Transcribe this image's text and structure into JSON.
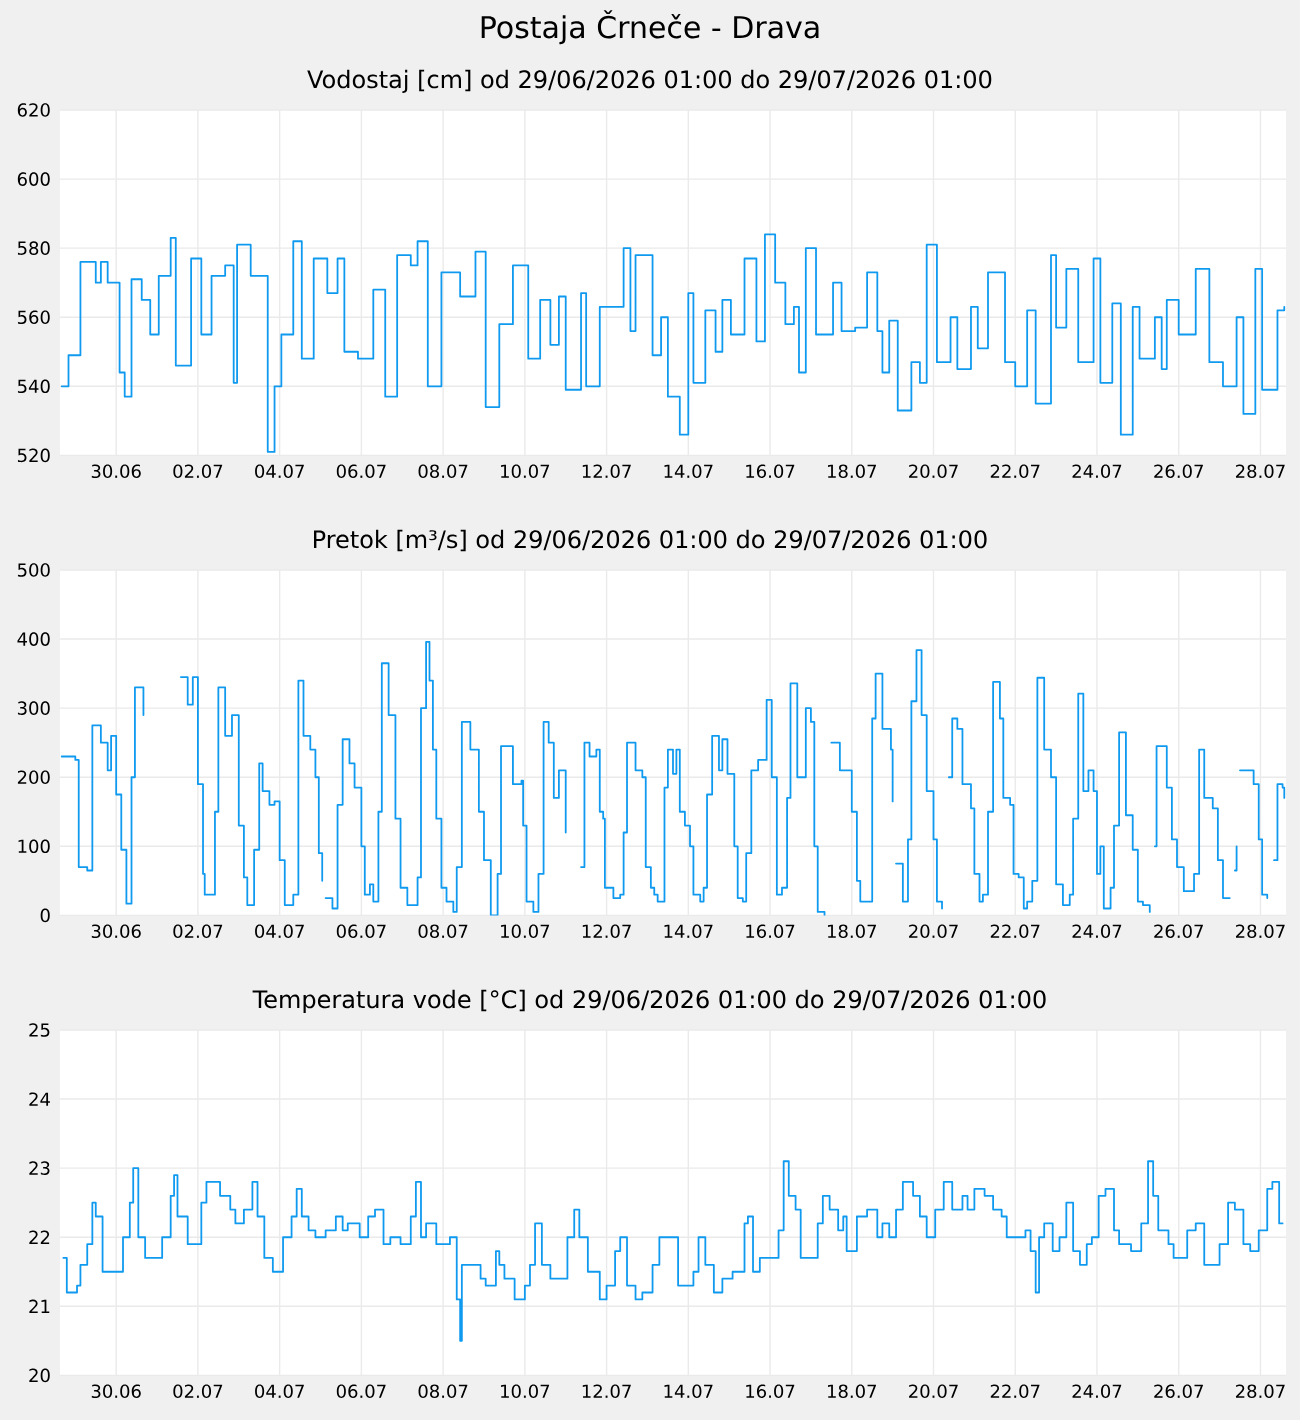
{
  "chart_data": [
    {
      "type": "step",
      "title": "Postaja Črneče - Drava",
      "subtitle": "Vodostaj [cm] od 29/06/2026 01:00 do 29/07/2026 01:00",
      "color": "#0f9af0",
      "grid": true,
      "xlim": [
        "2026-06-28T15:00",
        "2026-07-28T15:00"
      ],
      "ylim": [
        520,
        620
      ],
      "yticks": [
        520,
        540,
        560,
        580,
        600,
        620
      ],
      "xticks": [
        {
          "value": "2026-06-30",
          "label": "30.06"
        },
        {
          "value": "2026-07-02",
          "label": "02.07"
        },
        {
          "value": "2026-07-04",
          "label": "04.07"
        },
        {
          "value": "2026-07-06",
          "label": "06.07"
        },
        {
          "value": "2026-07-08",
          "label": "08.07"
        },
        {
          "value": "2026-07-10",
          "label": "10.07"
        },
        {
          "value": "2026-07-12",
          "label": "12.07"
        },
        {
          "value": "2026-07-14",
          "label": "14.07"
        },
        {
          "value": "2026-07-16",
          "label": "16.07"
        },
        {
          "value": "2026-07-18",
          "label": "18.07"
        },
        {
          "value": "2026-07-20",
          "label": "20.07"
        },
        {
          "value": "2026-07-22",
          "label": "22.07"
        },
        {
          "value": "2026-07-24",
          "label": "24.07"
        },
        {
          "value": "2026-07-26",
          "label": "26.07"
        },
        {
          "value": "2026-07-28",
          "label": "28.07"
        }
      ],
      "x": [
        "2026-06-28T16:00",
        "2026-06-28T20:00",
        "2026-06-29T03:00",
        "2026-06-29T12:00",
        "2026-06-29T15:00",
        "2026-06-29T19:00",
        "2026-06-30T02:00",
        "2026-06-30T05:00",
        "2026-06-30T09:00",
        "2026-06-30T15:00",
        "2026-06-30T20:00",
        "2026-07-01T01:00",
        "2026-07-01T08:00",
        "2026-07-01T11:00",
        "2026-07-01T20:00",
        "2026-07-02T02:00",
        "2026-07-02T08:00",
        "2026-07-02T16:00",
        "2026-07-02T21:00",
        "2026-07-02T23:00",
        "2026-07-03T07:00",
        "2026-07-03T17:00",
        "2026-07-03T21:00",
        "2026-07-04T01:00",
        "2026-07-04T08:00",
        "2026-07-04T13:00",
        "2026-07-04T20:00",
        "2026-07-05T04:00",
        "2026-07-05T10:00",
        "2026-07-05T14:00",
        "2026-07-05T22:00",
        "2026-07-06T07:00",
        "2026-07-06T14:00",
        "2026-07-06T21:00",
        "2026-07-07T05:00",
        "2026-07-07T09:00",
        "2026-07-07T15:00",
        "2026-07-07T23:00",
        "2026-07-08T10:00",
        "2026-07-08T19:00",
        "2026-07-09T01:00",
        "2026-07-09T09:00",
        "2026-07-09T17:00",
        "2026-07-10T02:00",
        "2026-07-10T09:00",
        "2026-07-10T15:00",
        "2026-07-10T20:00",
        "2026-07-11T00:00",
        "2026-07-11T09:00",
        "2026-07-11T12:00",
        "2026-07-11T20:00",
        "2026-07-12T10:00",
        "2026-07-12T14:00",
        "2026-07-12T17:00",
        "2026-07-13T03:00",
        "2026-07-13T08:00",
        "2026-07-13T12:00",
        "2026-07-13T19:00",
        "2026-07-14T00:00",
        "2026-07-14T03:00",
        "2026-07-14T10:00",
        "2026-07-14T16:00",
        "2026-07-14T20:00",
        "2026-07-15T01:00",
        "2026-07-15T09:00",
        "2026-07-15T16:00",
        "2026-07-15T21:00",
        "2026-07-16T03:00",
        "2026-07-16T09:00",
        "2026-07-16T14:00",
        "2026-07-16T17:00",
        "2026-07-16T21:00",
        "2026-07-17T03:00",
        "2026-07-17T13:00",
        "2026-07-17T18:00",
        "2026-07-18T02:00",
        "2026-07-18T09:00",
        "2026-07-18T15:00",
        "2026-07-18T18:00",
        "2026-07-18T22:00",
        "2026-07-19T03:00",
        "2026-07-19T11:00",
        "2026-07-19T16:00",
        "2026-07-19T20:00",
        "2026-07-20T02:00",
        "2026-07-20T10:00",
        "2026-07-20T14:00",
        "2026-07-20T22:00",
        "2026-07-21T02:00",
        "2026-07-21T08:00",
        "2026-07-21T18:00",
        "2026-07-22T00:00",
        "2026-07-22T07:00",
        "2026-07-22T12:00",
        "2026-07-22T21:00",
        "2026-07-23T00:00",
        "2026-07-23T06:00",
        "2026-07-23T13:00",
        "2026-07-23T22:00",
        "2026-07-24T02:00",
        "2026-07-24T09:00",
        "2026-07-24T14:00",
        "2026-07-24T21:00",
        "2026-07-25T01:00",
        "2026-07-25T10:00",
        "2026-07-25T14:00",
        "2026-07-25T17:00",
        "2026-07-26T00:00",
        "2026-07-26T10:00",
        "2026-07-26T18:00",
        "2026-07-27T02:00",
        "2026-07-27T10:00",
        "2026-07-27T14:00",
        "2026-07-27T21:00",
        "2026-07-28T01:00",
        "2026-07-28T10:00",
        "2026-07-28T14:00"
      ],
      "values": [
        540,
        549,
        576,
        570,
        576,
        570,
        544,
        537,
        571,
        565,
        555,
        572,
        583,
        546,
        577,
        555,
        572,
        575,
        541,
        581,
        572,
        521,
        540,
        555,
        582,
        548,
        577,
        567,
        577,
        550,
        548,
        568,
        537,
        578,
        575,
        582,
        540,
        573,
        566,
        579,
        534,
        558,
        575,
        548,
        565,
        552,
        566,
        539,
        567,
        540,
        563,
        580,
        556,
        578,
        549,
        560,
        537,
        526,
        567,
        541,
        562,
        550,
        565,
        555,
        577,
        553,
        584,
        570,
        558,
        563,
        544,
        580,
        555,
        570,
        556,
        557,
        573,
        556,
        544,
        559,
        533,
        547,
        541,
        581,
        547,
        560,
        545,
        563,
        551,
        573,
        547,
        540,
        562,
        535,
        578,
        557,
        574,
        547,
        577,
        541,
        564,
        526,
        563,
        548,
        560,
        545,
        565,
        555,
        574,
        547,
        540,
        560,
        532,
        574,
        539,
        562,
        563
      ]
    },
    {
      "type": "step",
      "title": "Pretok [m³/s] od 29/06/2026 01:00 do 29/07/2026 01:00",
      "color": "#0f9af0",
      "grid": true,
      "xlim": [
        "2026-06-28T15:00",
        "2026-07-28T15:00"
      ],
      "ylim": [
        0,
        500
      ],
      "yticks": [
        0,
        100,
        200,
        300,
        400,
        500
      ],
      "xticks": [
        {
          "value": "2026-06-30",
          "label": "30.06"
        },
        {
          "value": "2026-07-02",
          "label": "02.07"
        },
        {
          "value": "2026-07-04",
          "label": "04.07"
        },
        {
          "value": "2026-07-06",
          "label": "06.07"
        },
        {
          "value": "2026-07-08",
          "label": "08.07"
        },
        {
          "value": "2026-07-10",
          "label": "10.07"
        },
        {
          "value": "2026-07-12",
          "label": "12.07"
        },
        {
          "value": "2026-07-14",
          "label": "14.07"
        },
        {
          "value": "2026-07-16",
          "label": "16.07"
        },
        {
          "value": "2026-07-18",
          "label": "18.07"
        },
        {
          "value": "2026-07-20",
          "label": "20.07"
        },
        {
          "value": "2026-07-22",
          "label": "22.07"
        },
        {
          "value": "2026-07-24",
          "label": "24.07"
        },
        {
          "value": "2026-07-26",
          "label": "26.07"
        },
        {
          "value": "2026-07-28",
          "label": "28.07"
        }
      ],
      "x": [
        "2026-06-28T16:00",
        "2026-06-29T00:00",
        "2026-06-29T02:00",
        "2026-06-29T07:00",
        "2026-06-29T10:00",
        "2026-06-29T15:00",
        "2026-06-29T19:00",
        "2026-06-29T21:00",
        "2026-06-30T00:00",
        "2026-06-30T03:00",
        "2026-06-30T06:00",
        "2026-06-30T09:00",
        "2026-06-30T11:00",
        "2026-06-30T16:00",
        "2026-06-30T20:00",
        "2026-07-01T14:00",
        "2026-07-01T18:00",
        "2026-07-01T21:00",
        "2026-07-02T00:00",
        "2026-07-02T03:00",
        "2026-07-02T04:00",
        "2026-07-02T10:00",
        "2026-07-02T12:00",
        "2026-07-02T16:00",
        "2026-07-02T20:00",
        "2026-07-03T00:00",
        "2026-07-03T03:00",
        "2026-07-03T05:00",
        "2026-07-03T09:00",
        "2026-07-03T12:00",
        "2026-07-03T14:00",
        "2026-07-03T18:00",
        "2026-07-03T21:00",
        "2026-07-04T00:00",
        "2026-07-04T03:00",
        "2026-07-04T08:00",
        "2026-07-04T11:00",
        "2026-07-04T14:00",
        "2026-07-04T18:00",
        "2026-07-04T21:00",
        "2026-07-04T23:00",
        "2026-07-05T01:00",
        "2026-07-05T02:00",
        "2026-07-05T03:00",
        "2026-07-05T07:00",
        "2026-07-05T10:00",
        "2026-07-05T13:00",
        "2026-07-05T17:00",
        "2026-07-05T20:00",
        "2026-07-06T00:00",
        "2026-07-06T02:00",
        "2026-07-06T05:00",
        "2026-07-06T07:00",
        "2026-07-06T10:00",
        "2026-07-06T12:00",
        "2026-07-06T16:00",
        "2026-07-06T20:00",
        "2026-07-06T23:00",
        "2026-07-07T03:00",
        "2026-07-07T09:00",
        "2026-07-07T11:00",
        "2026-07-07T14:00",
        "2026-07-07T16:00",
        "2026-07-07T18:00",
        "2026-07-07T20:00",
        "2026-07-07T23:00",
        "2026-07-08T02:00",
        "2026-07-08T06:00",
        "2026-07-08T08:00",
        "2026-07-08T11:00",
        "2026-07-08T16:00",
        "2026-07-08T21:00",
        "2026-07-09T00:00",
        "2026-07-09T04:00",
        "2026-07-09T08:00",
        "2026-07-09T10:00",
        "2026-07-09T15:00",
        "2026-07-09T17:00",
        "2026-07-09T22:00",
        "2026-07-09T23:00",
        "2026-07-10T01:00",
        "2026-07-10T05:00",
        "2026-07-10T08:00",
        "2026-07-10T11:00",
        "2026-07-10T14:00",
        "2026-07-10T17:00",
        "2026-07-10T20:00",
        "2026-07-11T00:00",
        "2026-07-11T01:00",
        "2026-07-11T09:00",
        "2026-07-11T11:00",
        "2026-07-11T14:00",
        "2026-07-11T18:00",
        "2026-07-11T20:00",
        "2026-07-11T22:00",
        "2026-07-11T23:00",
        "2026-07-12T04:00",
        "2026-07-12T08:00",
        "2026-07-12T10:00",
        "2026-07-12T12:00",
        "2026-07-12T17:00",
        "2026-07-12T21:00",
        "2026-07-12T23:00",
        "2026-07-13T02:00",
        "2026-07-13T04:00",
        "2026-07-13T06:00",
        "2026-07-13T10:00",
        "2026-07-13T12:00",
        "2026-07-13T15:00",
        "2026-07-13T17:00",
        "2026-07-13T19:00",
        "2026-07-13T22:00",
        "2026-07-14T01:00",
        "2026-07-14T03:00",
        "2026-07-14T07:00",
        "2026-07-14T09:00",
        "2026-07-14T11:00",
        "2026-07-14T14:00",
        "2026-07-14T18:00",
        "2026-07-14T20:00",
        "2026-07-14T23:00",
        "2026-07-15T03:00",
        "2026-07-15T05:00",
        "2026-07-15T08:00",
        "2026-07-15T10:00",
        "2026-07-15T13:00",
        "2026-07-15T17:00",
        "2026-07-15T22:00",
        "2026-07-16T01:00",
        "2026-07-16T04:00",
        "2026-07-16T07:00",
        "2026-07-16T10:00",
        "2026-07-16T12:00",
        "2026-07-16T16:00",
        "2026-07-16T21:00",
        "2026-07-17T00:00",
        "2026-07-17T02:00",
        "2026-07-17T04:00",
        "2026-07-17T08:00",
        "2026-07-17T10:00",
        "2026-07-17T12:00",
        "2026-07-17T17:00",
        "2026-07-17T22:00",
        "2026-07-18T00:00",
        "2026-07-18T03:00",
        "2026-07-18T05:00",
        "2026-07-18T08:00",
        "2026-07-18T12:00",
        "2026-07-18T14:00",
        "2026-07-18T18:00",
        "2026-07-18T23:00",
        "2026-07-19T00:00",
        "2026-07-19T01:00",
        "2026-07-19T02:00",
        "2026-07-19T06:00",
        "2026-07-19T09:00",
        "2026-07-19T11:00",
        "2026-07-19T14:00",
        "2026-07-19T17:00",
        "2026-07-19T20:00",
        "2026-07-20T00:00",
        "2026-07-20T02:00",
        "2026-07-20T05:00",
        "2026-07-20T07:00",
        "2026-07-20T09:00",
        "2026-07-20T11:00",
        "2026-07-20T14:00",
        "2026-07-20T17:00",
        "2026-07-20T22:00",
        "2026-07-21T00:00",
        "2026-07-21T03:00",
        "2026-07-21T05:00",
        "2026-07-21T08:00",
        "2026-07-21T11:00",
        "2026-07-21T15:00",
        "2026-07-21T17:00",
        "2026-07-21T21:00",
        "2026-07-21T23:00",
        "2026-07-22T02:00",
        "2026-07-22T05:00",
        "2026-07-22T07:00",
        "2026-07-22T10:00",
        "2026-07-22T13:00",
        "2026-07-22T17:00",
        "2026-07-22T21:00",
        "2026-07-23T00:00",
        "2026-07-23T04:00",
        "2026-07-23T08:00",
        "2026-07-23T10:00",
        "2026-07-23T13:00",
        "2026-07-23T16:00",
        "2026-07-23T19:00",
        "2026-07-23T22:00",
        "2026-07-24T00:00",
        "2026-07-24T02:00",
        "2026-07-24T04:00",
        "2026-07-24T08:00",
        "2026-07-24T10:00",
        "2026-07-24T13:00",
        "2026-07-24T17:00",
        "2026-07-24T21:00",
        "2026-07-25T00:00",
        "2026-07-25T03:00",
        "2026-07-25T07:00",
        "2026-07-25T08:00",
        "2026-07-25T10:00",
        "2026-07-25T11:00",
        "2026-07-25T17:00",
        "2026-07-25T20:00",
        "2026-07-25T23:00",
        "2026-07-26T03:00",
        "2026-07-26T06:00",
        "2026-07-26T09:00",
        "2026-07-26T12:00",
        "2026-07-26T15:00",
        "2026-07-26T20:00",
        "2026-07-26T23:00",
        "2026-07-27T02:00",
        "2026-07-27T06:00",
        "2026-07-27T07:00",
        "2026-07-27T09:00",
        "2026-07-27T10:00",
        "2026-07-27T11:00",
        "2026-07-27T12:00",
        "2026-07-27T16:00",
        "2026-07-27T20:00",
        "2026-07-27T23:00",
        "2026-07-28T01:00",
        "2026-07-28T04:00",
        "2026-07-28T05:00",
        "2026-07-28T08:00",
        "2026-07-28T10:00",
        "2026-07-28T13:00",
        "2026-07-28T14:00"
      ],
      "values": [
        230,
        225,
        70,
        65,
        275,
        250,
        210,
        260,
        175,
        95,
        17,
        200,
        330,
        290,
        null,
        345,
        305,
        345,
        190,
        60,
        30,
        150,
        330,
        260,
        290,
        130,
        55,
        15,
        95,
        220,
        180,
        160,
        165,
        80,
        15,
        30,
        340,
        260,
        240,
        200,
        90,
        50,
        null,
        25,
        10,
        160,
        255,
        220,
        185,
        100,
        30,
        45,
        20,
        150,
        365,
        290,
        140,
        40,
        15,
        55,
        300,
        396,
        340,
        240,
        140,
        40,
        20,
        5,
        70,
        280,
        240,
        150,
        80,
        0,
        60,
        245,
        245,
        190,
        195,
        130,
        20,
        5,
        60,
        280,
        250,
        170,
        210,
        120,
        null,
        70,
        250,
        230,
        240,
        150,
        140,
        40,
        25,
        30,
        120,
        250,
        210,
        200,
        70,
        40,
        30,
        20,
        185,
        240,
        205,
        240,
        150,
        130,
        100,
        30,
        20,
        40,
        175,
        260,
        210,
        255,
        205,
        100,
        25,
        20,
        90,
        210,
        225,
        312,
        200,
        30,
        40,
        170,
        336,
        200,
        300,
        280,
        100,
        5,
        0,
        null,
        250,
        210,
        210,
        150,
        50,
        20,
        20,
        285,
        350,
        270,
        240,
        165,
        null,
        75,
        20,
        110,
        310,
        384,
        290,
        180,
        110,
        20,
        10,
        null,
        200,
        285,
        270,
        190,
        155,
        60,
        20,
        30,
        150,
        338,
        285,
        170,
        160,
        60,
        55,
        10,
        20,
        50,
        344,
        240,
        200,
        45,
        15,
        30,
        140,
        321,
        180,
        210,
        180,
        60,
        100,
        10,
        40,
        130,
        265,
        145,
        95,
        20,
        15,
        5,
        null,
        100,
        245,
        185,
        110,
        70,
        35,
        35,
        60,
        240,
        170,
        155,
        80,
        25,
        25,
        null,
        65,
        100,
        null,
        210,
        210,
        190,
        110,
        30,
        25,
        null,
        80,
        190,
        185,
        170
      ]
    },
    {
      "type": "step",
      "title": "Temperatura vode [°C] od 29/06/2026 01:00 do 29/07/2026 01:00",
      "color": "#0f9af0",
      "grid": true,
      "xlim": [
        "2026-06-28T15:00",
        "2026-07-28T15:00"
      ],
      "ylim": [
        20,
        25
      ],
      "yticks": [
        20,
        21,
        22,
        23,
        24,
        25
      ],
      "xticks": [
        {
          "value": "2026-06-30",
          "label": "30.06"
        },
        {
          "value": "2026-07-02",
          "label": "02.07"
        },
        {
          "value": "2026-07-04",
          "label": "04.07"
        },
        {
          "value": "2026-07-06",
          "label": "06.07"
        },
        {
          "value": "2026-07-08",
          "label": "08.07"
        },
        {
          "value": "2026-07-10",
          "label": "10.07"
        },
        {
          "value": "2026-07-12",
          "label": "12.07"
        },
        {
          "value": "2026-07-14",
          "label": "14.07"
        },
        {
          "value": "2026-07-16",
          "label": "16.07"
        },
        {
          "value": "2026-07-18",
          "label": "18.07"
        },
        {
          "value": "2026-07-20",
          "label": "20.07"
        },
        {
          "value": "2026-07-22",
          "label": "22.07"
        },
        {
          "value": "2026-07-24",
          "label": "24.07"
        },
        {
          "value": "2026-07-26",
          "label": "26.07"
        },
        {
          "value": "2026-07-28",
          "label": "28.07"
        }
      ],
      "x": [
        "2026-06-28T17:00",
        "2026-06-28T19:00",
        "2026-06-29T01:00",
        "2026-06-29T03:00",
        "2026-06-29T07:00",
        "2026-06-29T10:00",
        "2026-06-29T12:00",
        "2026-06-29T16:00",
        "2026-06-30T00:00",
        "2026-06-30T04:00",
        "2026-06-30T08:00",
        "2026-06-30T10:00",
        "2026-06-30T13:00",
        "2026-06-30T17:00",
        "2026-06-30T22:00",
        "2026-07-01T03:00",
        "2026-07-01T08:00",
        "2026-07-01T10:00",
        "2026-07-01T12:00",
        "2026-07-01T18:00",
        "2026-07-01T22:00",
        "2026-07-02T02:00",
        "2026-07-02T05:00",
        "2026-07-02T10:00",
        "2026-07-02T13:00",
        "2026-07-02T19:00",
        "2026-07-02T22:00",
        "2026-07-03T03:00",
        "2026-07-03T08:00",
        "2026-07-03T11:00",
        "2026-07-03T15:00",
        "2026-07-03T20:00",
        "2026-07-04T02:00",
        "2026-07-04T07:00",
        "2026-07-04T10:00",
        "2026-07-04T13:00",
        "2026-07-04T17:00",
        "2026-07-04T21:00",
        "2026-07-05T03:00",
        "2026-07-05T09:00",
        "2026-07-05T13:00",
        "2026-07-05T16:00",
        "2026-07-05T23:00",
        "2026-07-06T04:00",
        "2026-07-06T08:00",
        "2026-07-06T13:00",
        "2026-07-06T17:00",
        "2026-07-06T23:00",
        "2026-07-07T05:00",
        "2026-07-07T08:00",
        "2026-07-07T11:00",
        "2026-07-07T14:00",
        "2026-07-07T20:00",
        "2026-07-08T04:00",
        "2026-07-08T08:00",
        "2026-07-08T10:00",
        "2026-07-08T11:00",
        "2026-07-08T17:00",
        "2026-07-08T22:00",
        "2026-07-09T01:00",
        "2026-07-09T07:00",
        "2026-07-09T09:00",
        "2026-07-09T12:00",
        "2026-07-09T18:00",
        "2026-07-10T00:00",
        "2026-07-10T03:00",
        "2026-07-10T06:00",
        "2026-07-10T10:00",
        "2026-07-10T15:00",
        "2026-07-10T21:00",
        "2026-07-11T01:00",
        "2026-07-11T05:00",
        "2026-07-11T08:00",
        "2026-07-11T13:00",
        "2026-07-11T18:00",
        "2026-07-11T20:00",
        "2026-07-12T00:00",
        "2026-07-12T05:00",
        "2026-07-12T08:00",
        "2026-07-12T12:00",
        "2026-07-12T17:00",
        "2026-07-12T21:00",
        "2026-07-13T03:00",
        "2026-07-13T07:00",
        "2026-07-13T14:00",
        "2026-07-13T18:00",
        "2026-07-14T00:00",
        "2026-07-14T03:00",
        "2026-07-14T06:00",
        "2026-07-14T10:00",
        "2026-07-14T15:00",
        "2026-07-14T20:00",
        "2026-07-15T02:00",
        "2026-07-15T09:00",
        "2026-07-15T11:00",
        "2026-07-15T14:00",
        "2026-07-15T18:00",
        "2026-07-15T23:00",
        "2026-07-16T05:00",
        "2026-07-16T08:00",
        "2026-07-16T11:00",
        "2026-07-16T15:00",
        "2026-07-16T18:00",
        "2026-07-16T22:00",
        "2026-07-17T04:00",
        "2026-07-17T07:00",
        "2026-07-17T11:00",
        "2026-07-17T16:00",
        "2026-07-17T19:00",
        "2026-07-17T21:00",
        "2026-07-18T03:00",
        "2026-07-18T09:00",
        "2026-07-18T15:00",
        "2026-07-18T18:00",
        "2026-07-18T22:00",
        "2026-07-19T02:00",
        "2026-07-19T06:00",
        "2026-07-19T12:00",
        "2026-07-19T16:00",
        "2026-07-19T20:00",
        "2026-07-20T01:00",
        "2026-07-20T06:00",
        "2026-07-20T11:00",
        "2026-07-20T17:00",
        "2026-07-20T20:00",
        "2026-07-21T00:00",
        "2026-07-21T06:00",
        "2026-07-21T11:00",
        "2026-07-21T16:00",
        "2026-07-21T19:00",
        "2026-07-22T01:00",
        "2026-07-22T06:00",
        "2026-07-22T09:00",
        "2026-07-22T12:00",
        "2026-07-22T14:00",
        "2026-07-22T17:00",
        "2026-07-22T22:00",
        "2026-07-23T02:00",
        "2026-07-23T06:00",
        "2026-07-23T10:00",
        "2026-07-23T14:00",
        "2026-07-23T18:00",
        "2026-07-23T21:00",
        "2026-07-24T01:00",
        "2026-07-24T05:00",
        "2026-07-24T10:00",
        "2026-07-24T13:00",
        "2026-07-24T20:00",
        "2026-07-25T02:00",
        "2026-07-25T06:00",
        "2026-07-25T09:00",
        "2026-07-25T12:00",
        "2026-07-25T18:00",
        "2026-07-25T21:00",
        "2026-07-26T01:00",
        "2026-07-26T05:00",
        "2026-07-26T10:00",
        "2026-07-26T15:00",
        "2026-07-26T18:00",
        "2026-07-27T00:00",
        "2026-07-27T05:00",
        "2026-07-27T09:00",
        "2026-07-27T14:00",
        "2026-07-27T18:00",
        "2026-07-27T23:00",
        "2026-07-28T04:00",
        "2026-07-28T07:00",
        "2026-07-28T11:00",
        "2026-07-28T13:00"
      ],
      "values": [
        21.7,
        21.2,
        21.3,
        21.6,
        21.9,
        22.5,
        22.3,
        21.5,
        21.5,
        22.0,
        22.5,
        23.0,
        22.0,
        21.7,
        21.7,
        22.0,
        22.6,
        22.9,
        22.3,
        21.9,
        21.9,
        22.5,
        22.8,
        22.8,
        22.6,
        22.4,
        22.2,
        22.4,
        22.8,
        22.3,
        21.7,
        21.5,
        22.0,
        22.3,
        22.7,
        22.3,
        22.1,
        22.0,
        22.1,
        22.3,
        22.1,
        22.2,
        22.0,
        22.3,
        22.4,
        21.9,
        22.0,
        21.9,
        22.3,
        22.8,
        22.0,
        22.2,
        21.9,
        22.0,
        21.1,
        20.5,
        21.6,
        21.6,
        21.4,
        21.3,
        21.8,
        21.6,
        21.4,
        21.1,
        21.3,
        21.6,
        22.2,
        21.6,
        21.4,
        21.4,
        22.0,
        22.4,
        22.0,
        21.5,
        21.5,
        21.1,
        21.3,
        21.8,
        22.0,
        21.3,
        21.1,
        21.2,
        21.6,
        22.0,
        22.0,
        21.3,
        21.3,
        21.5,
        22.0,
        21.6,
        21.2,
        21.4,
        21.5,
        22.2,
        22.3,
        21.5,
        21.7,
        21.7,
        22.1,
        23.1,
        22.6,
        22.4,
        21.7,
        21.7,
        22.2,
        22.6,
        22.4,
        22.1,
        22.3,
        21.8,
        22.3,
        22.4,
        22.0,
        22.2,
        22.0,
        22.4,
        22.8,
        22.6,
        22.3,
        22.0,
        22.4,
        22.8,
        22.4,
        22.6,
        22.4,
        22.7,
        22.6,
        22.4,
        22.3,
        22.0,
        22.0,
        22.1,
        21.8,
        21.2,
        22.0,
        22.2,
        21.8,
        22.0,
        22.5,
        21.8,
        21.6,
        21.9,
        22.0,
        22.6,
        22.7,
        22.1,
        21.9,
        21.8,
        22.2,
        23.1,
        22.6,
        22.1,
        21.9,
        21.7,
        21.7,
        22.1,
        22.2,
        21.6,
        21.6,
        21.9,
        22.5,
        22.4,
        21.9,
        21.8,
        22.1,
        22.7,
        22.8,
        22.2,
        22.2
      ]
    }
  ]
}
